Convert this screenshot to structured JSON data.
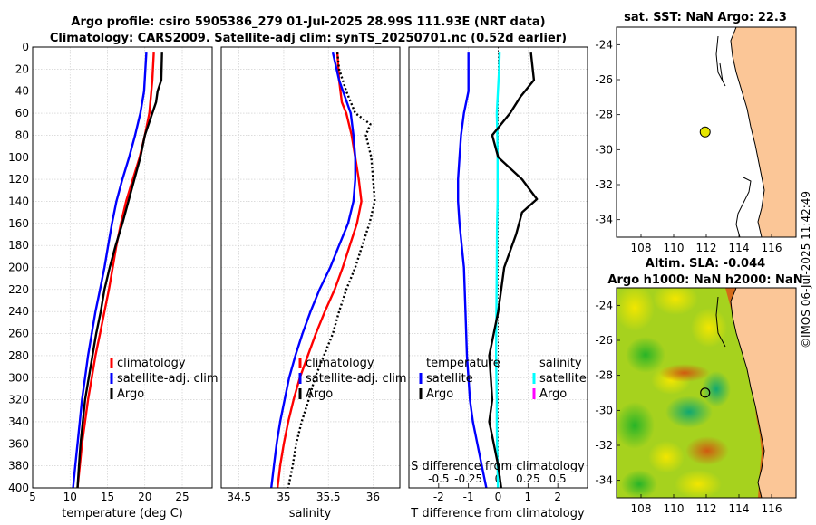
{
  "figure": {
    "title_line1": "Argo profile: csiro 5905386_279 01-Jul-2025 28.99S 111.93E (NRT data)",
    "title_line2": "Climatology: CARS2009. Satellite-adj clim: synTS_20250701.nc (0.52d earlier)",
    "timestamp": "©IMOS 06-Jul-2025 11:42:49",
    "colors": {
      "climatology": "#ff0000",
      "satellite": "#0000ff",
      "argo": "#000000",
      "sat_salinity": "#00ffff",
      "argo_salinity": "#ff00ff",
      "land": "#fbc697",
      "ocean": "#ffffff",
      "float_marker": "#e6e600"
    }
  },
  "chart_data": [
    {
      "id": "temperature",
      "type": "line",
      "xlabel": "temperature (deg C)",
      "ylim": [
        0,
        400
      ],
      "xlim": [
        5,
        29
      ],
      "x_ticks": [
        "5",
        "10",
        "15",
        "20",
        "25"
      ],
      "y_ticks": [
        "0",
        "20",
        "40",
        "60",
        "80",
        "100",
        "120",
        "140",
        "160",
        "180",
        "200",
        "220",
        "240",
        "260",
        "280",
        "300",
        "320",
        "340",
        "360",
        "380",
        "400"
      ],
      "legend": [
        "climatology",
        "satellite-adj. clim",
        "Argo"
      ],
      "series": [
        {
          "name": "climatology",
          "depth": [
            5,
            30,
            60,
            80,
            100,
            120,
            140,
            160,
            180,
            200,
            220,
            240,
            260,
            280,
            300,
            320,
            340,
            360,
            380,
            400
          ],
          "values": [
            21.2,
            21.0,
            20.6,
            20.0,
            19.3,
            18.4,
            17.5,
            16.8,
            16.2,
            15.7,
            15.2,
            14.6,
            14.0,
            13.4,
            12.9,
            12.4,
            12.0,
            11.6,
            11.3,
            11.0
          ]
        },
        {
          "name": "satellite-adj. clim",
          "depth": [
            5,
            40,
            60,
            80,
            100,
            120,
            140,
            160,
            180,
            200,
            220,
            240,
            260,
            280,
            300,
            320,
            340,
            360,
            380,
            400
          ],
          "values": [
            20.2,
            19.9,
            19.4,
            18.7,
            17.9,
            17.0,
            16.2,
            15.6,
            15.1,
            14.6,
            14.0,
            13.4,
            12.9,
            12.4,
            12.0,
            11.6,
            11.3,
            11.0,
            10.7,
            10.4
          ]
        },
        {
          "name": "Argo",
          "depth": [
            5,
            30,
            40,
            50,
            60,
            80,
            100,
            120,
            140,
            160,
            180,
            200,
            220,
            240,
            260,
            280,
            300,
            320,
            340,
            360,
            380,
            400
          ],
          "values": [
            22.3,
            22.2,
            21.7,
            21.5,
            21.0,
            20.0,
            19.4,
            18.6,
            17.8,
            17.0,
            16.1,
            15.3,
            14.6,
            14.1,
            13.5,
            13.0,
            12.5,
            12.0,
            11.7,
            11.4,
            11.2,
            11.0
          ]
        }
      ]
    },
    {
      "id": "salinity",
      "type": "line",
      "xlabel": "salinity",
      "ylim": [
        0,
        400
      ],
      "xlim": [
        34.3,
        36.3
      ],
      "x_ticks": [
        "34.5",
        "35",
        "35.5",
        "36"
      ],
      "legend": [
        "climatology",
        "satellite-adj. clim",
        "Argo"
      ],
      "series": [
        {
          "name": "climatology",
          "depth": [
            5,
            30,
            50,
            60,
            80,
            100,
            120,
            140,
            160,
            180,
            200,
            220,
            240,
            260,
            280,
            300,
            320,
            340,
            360,
            380,
            400
          ],
          "values": [
            35.6,
            35.62,
            35.65,
            35.7,
            35.76,
            35.8,
            35.84,
            35.87,
            35.82,
            35.74,
            35.66,
            35.57,
            35.46,
            35.36,
            35.27,
            35.18,
            35.11,
            35.05,
            35.0,
            34.96,
            34.93
          ]
        },
        {
          "name": "satellite-adj. clim",
          "depth": [
            5,
            30,
            60,
            80,
            100,
            120,
            140,
            160,
            180,
            200,
            220,
            240,
            260,
            280,
            300,
            320,
            340,
            360,
            380,
            400
          ],
          "values": [
            35.55,
            35.62,
            35.75,
            35.78,
            35.8,
            35.8,
            35.78,
            35.72,
            35.62,
            35.52,
            35.4,
            35.3,
            35.21,
            35.13,
            35.06,
            35.01,
            34.96,
            34.92,
            34.89,
            34.86
          ]
        },
        {
          "name": "Argo",
          "depth": [
            5,
            20,
            40,
            60,
            70,
            80,
            100,
            120,
            140,
            160,
            180,
            200,
            220,
            240,
            260,
            280,
            300,
            320,
            340,
            360,
            380,
            400
          ],
          "values": [
            35.6,
            35.62,
            35.7,
            35.8,
            35.97,
            35.92,
            35.98,
            36.0,
            36.02,
            35.96,
            35.88,
            35.8,
            35.7,
            35.62,
            35.55,
            35.45,
            35.35,
            35.28,
            35.2,
            35.14,
            35.1,
            35.05
          ]
        }
      ]
    },
    {
      "id": "differences",
      "type": "line",
      "xlabel": "T difference from climatology",
      "top_axis_label": "S difference from climatology",
      "ylim": [
        0,
        400
      ],
      "xlim": [
        -3,
        3
      ],
      "x_ticks": [
        "-2",
        "-1",
        "0",
        "1",
        "2"
      ],
      "top_ticks": [
        "-0.5",
        "-0.25",
        "0",
        "0.25",
        "0.5"
      ],
      "legend_temperature_title": "temperature",
      "legend_salinity_title": "salinity",
      "legend_temperature": [
        "satellite",
        "Argo"
      ],
      "legend_salinity": [
        "satellite",
        "Argo"
      ],
      "series": [
        {
          "name": "T satellite",
          "depth": [
            5,
            40,
            60,
            80,
            100,
            120,
            140,
            160,
            200,
            240,
            280,
            300,
            320,
            340,
            360,
            380,
            400
          ],
          "values": [
            -1.0,
            -1.0,
            -1.15,
            -1.25,
            -1.3,
            -1.35,
            -1.35,
            -1.3,
            -1.15,
            -1.1,
            -1.05,
            -1.0,
            -0.95,
            -0.85,
            -0.7,
            -0.55,
            -0.4
          ]
        },
        {
          "name": "S satellite",
          "depth": [
            5,
            20,
            40,
            60,
            80,
            100,
            120,
            140,
            160,
            200,
            240,
            280,
            300,
            320,
            340,
            360,
            380,
            400
          ],
          "values": [
            0.05,
            0.03,
            -0.01,
            -0.05,
            -0.03,
            -0.02,
            -0.02,
            -0.02,
            -0.04,
            -0.05,
            -0.06,
            -0.07,
            -0.06,
            -0.05,
            -0.05,
            -0.04,
            -0.02,
            -0.01
          ]
        },
        {
          "name": "T Argo",
          "depth": [
            5,
            30,
            45,
            60,
            80,
            100,
            120,
            138,
            150,
            170,
            200,
            240,
            280,
            300,
            320,
            340,
            360,
            380,
            400
          ],
          "values": [
            1.1,
            1.2,
            0.75,
            0.4,
            -0.2,
            0.0,
            0.8,
            1.3,
            0.8,
            0.6,
            0.2,
            0.0,
            -0.3,
            -0.25,
            -0.2,
            -0.3,
            -0.15,
            0.0,
            0.1
          ]
        }
      ]
    },
    {
      "id": "sst_map",
      "type": "scatter",
      "title": "sat. SST: NaN Argo: 22.3",
      "x_ticks": [
        "108",
        "110",
        "112",
        "114",
        "116"
      ],
      "y_ticks": [
        "-24",
        "-26",
        "-28",
        "-30",
        "-32",
        "-34"
      ],
      "xlim": [
        106.5,
        117.5
      ],
      "ylim": [
        -35,
        -23
      ],
      "float": {
        "lon": 111.93,
        "lat": -28.99
      }
    },
    {
      "id": "sla_map",
      "type": "heatmap",
      "title_line1": "Altim. SLA: -0.044",
      "title_line2": "Argo h1000: NaN h2000: NaN",
      "x_ticks": [
        "108",
        "110",
        "112",
        "114",
        "116"
      ],
      "y_ticks": [
        "-24",
        "-26",
        "-28",
        "-30",
        "-32",
        "-34"
      ],
      "xlim": [
        106.5,
        117.5
      ],
      "ylim": [
        -35,
        -23
      ],
      "float": {
        "lon": 111.93,
        "lat": -28.99
      }
    }
  ]
}
